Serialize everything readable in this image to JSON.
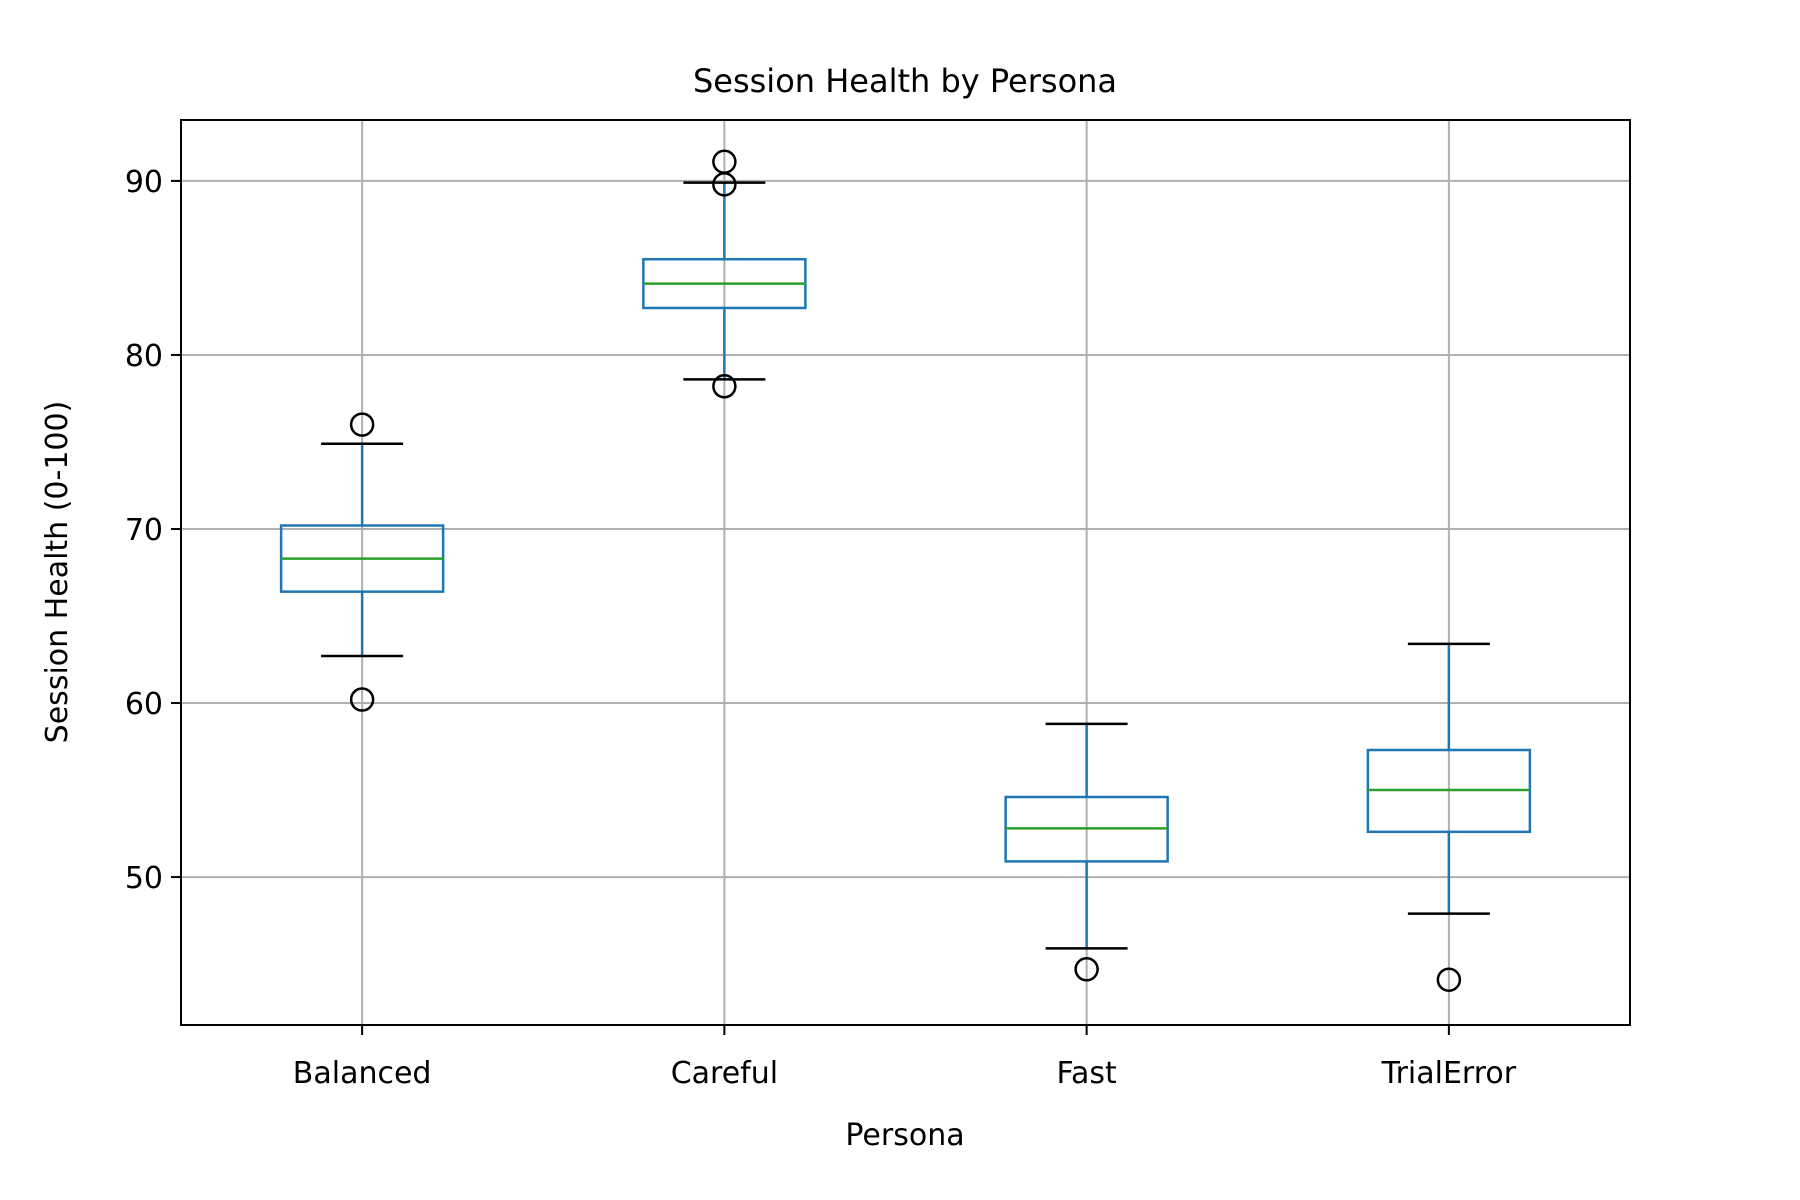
{
  "chart_data": {
    "type": "box",
    "title": "Session Health by Persona",
    "xlabel": "Persona",
    "ylabel": "Session Health (0-100)",
    "ylim": [
      41.5,
      93.5
    ],
    "yticks": [
      50,
      60,
      70,
      80,
      90
    ],
    "grid": true,
    "categories": [
      "Balanced",
      "Careful",
      "Fast",
      "TrialError"
    ],
    "boxes": [
      {
        "category": "Balanced",
        "whisker_low": 62.7,
        "q1": 66.4,
        "median": 68.3,
        "q3": 70.2,
        "whisker_high": 74.9,
        "outliers": [
          76.0,
          60.2
        ]
      },
      {
        "category": "Careful",
        "whisker_low": 78.6,
        "q1": 82.7,
        "median": 84.1,
        "q3": 85.5,
        "whisker_high": 89.9,
        "outliers": [
          91.1,
          89.8,
          78.2
        ]
      },
      {
        "category": "Fast",
        "whisker_low": 45.9,
        "q1": 50.9,
        "median": 52.8,
        "q3": 54.6,
        "whisker_high": 58.8,
        "outliers": [
          44.7
        ]
      },
      {
        "category": "TrialError",
        "whisker_low": 47.9,
        "q1": 52.6,
        "median": 55.0,
        "q3": 57.3,
        "whisker_high": 63.4,
        "outliers": [
          44.1
        ]
      }
    ],
    "colors": {
      "box": "#1f77b4",
      "median": "#2ca02c",
      "whisker_cap": "#000000",
      "outlier": "#000000",
      "grid": "#b0b0b0"
    }
  }
}
